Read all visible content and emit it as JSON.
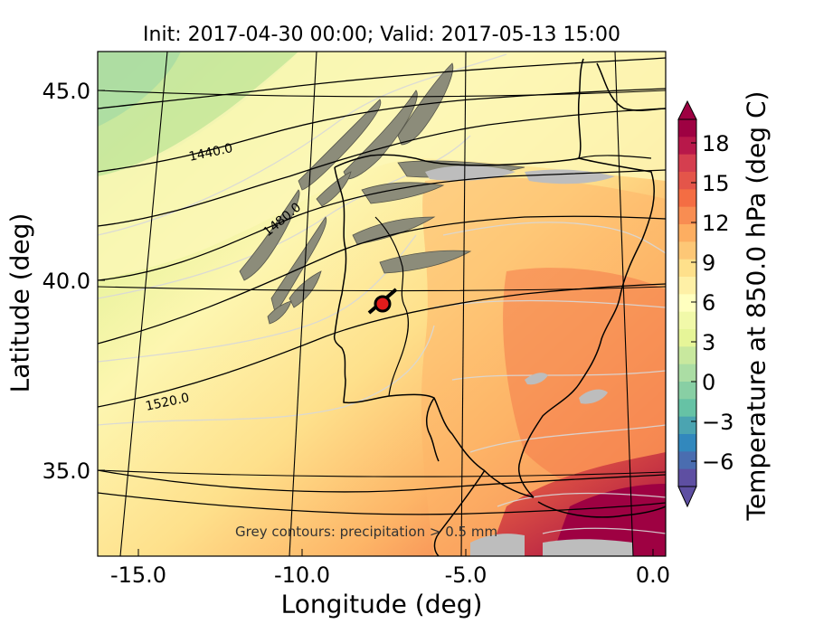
{
  "title": "Init: 2017-04-30 00:00; Valid: 2017-05-13 15:00",
  "axes": {
    "xlabel": "Longitude (deg)",
    "ylabel": "Latitude (deg)",
    "xticks": [
      "-15.0",
      "-10.0",
      "-5.0",
      "0.0"
    ],
    "yticks": [
      "45.0",
      "40.0",
      "35.0"
    ]
  },
  "colorbar": {
    "label": "Temperature at 850.0 hPa (deg C)",
    "ticks": [
      "18",
      "15",
      "12",
      "9",
      "6",
      "3",
      "0",
      "−3",
      "−6"
    ]
  },
  "contour_labels": [
    "1440.0",
    "1480.0",
    "1520.0"
  ],
  "annotation": "Grey contours: precipitation > 0.5 mm",
  "colors": {
    "warm_max": "#9e0142",
    "warm": "#f46d43",
    "mid": "#fee08b",
    "cool": "#abdda4",
    "cold_min": "#5e4fa2",
    "precip": "#8c8c7a"
  }
}
